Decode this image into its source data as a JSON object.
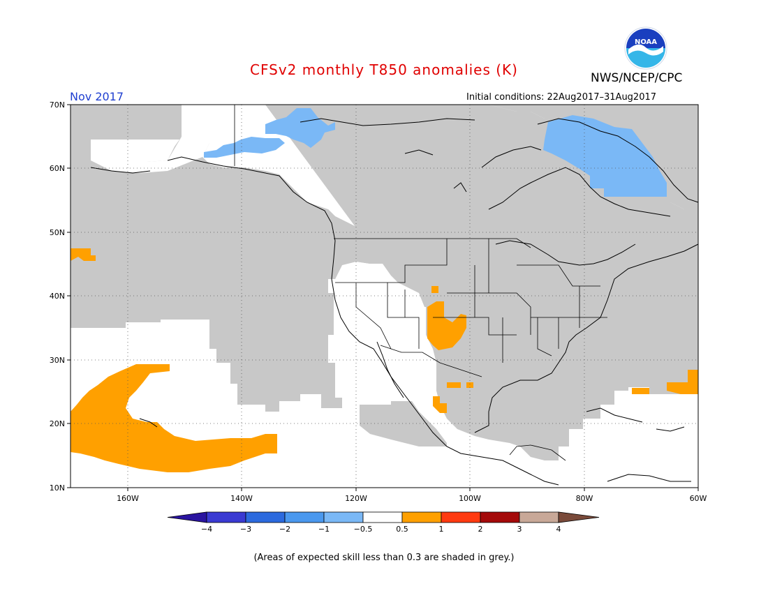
{
  "title": "CFSv2 monthly T850 anomalies (K)",
  "agency": "NWS/NCEP/CPC",
  "logo_text": "NOAA",
  "valid_month": "Nov 2017",
  "initial_conditions": "Initial conditions: 22Aug2017–31Aug2017",
  "footnote": "(Areas of expected skill less than 0.3 are shaded in grey.)",
  "map": {
    "lon_range": [
      -170,
      -60
    ],
    "lat_range": [
      10,
      70
    ],
    "lat_ticks": [
      "70N",
      "60N",
      "50N",
      "40N",
      "30N",
      "20N",
      "10N"
    ],
    "lon_ticks": [
      "160W",
      "140W",
      "120W",
      "100W",
      "80W",
      "60W"
    ],
    "low_skill_color": "#c8c8c8"
  },
  "colorbar": {
    "colors": [
      "#2a14a0",
      "#3a3ad2",
      "#2c6ade",
      "#4a98ee",
      "#7ab8f6",
      "#ffffff",
      "#ffa000",
      "#ff3a10",
      "#a40a0a",
      "#c8a898",
      "#7a4a3a"
    ],
    "labels": [
      "−4",
      "−3",
      "−2",
      "−1",
      "−0.5",
      "0.5",
      "1",
      "2",
      "3",
      "4"
    ]
  }
}
